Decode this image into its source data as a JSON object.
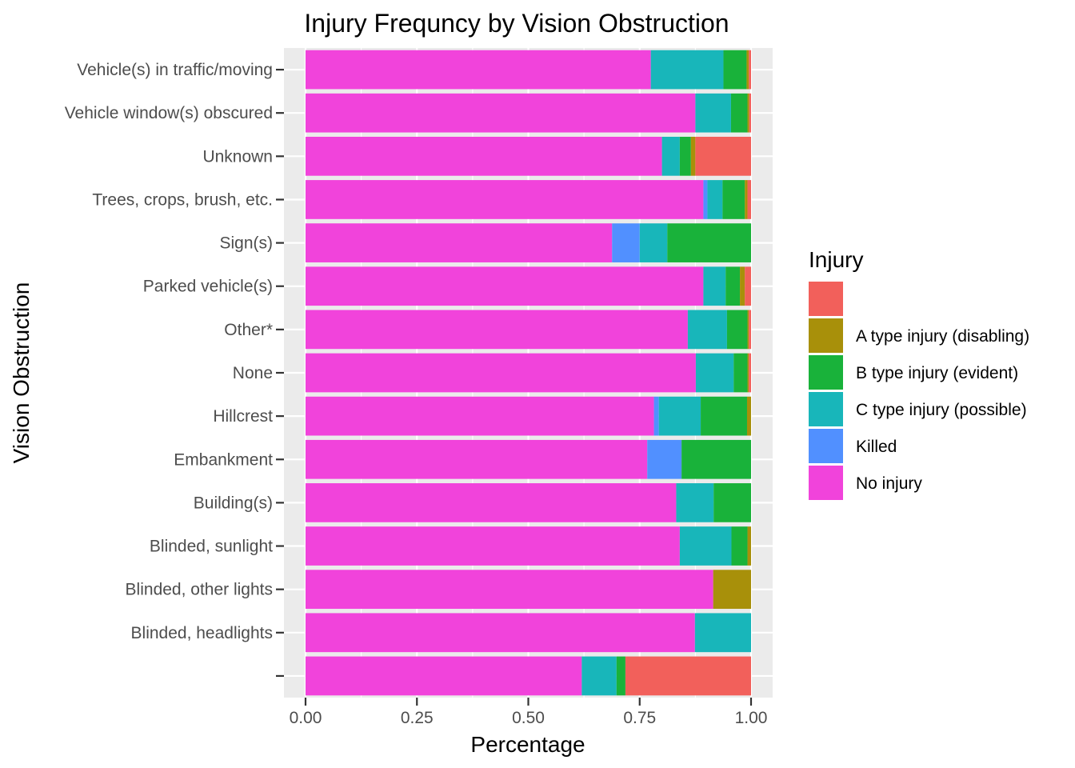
{
  "chart_data": {
    "type": "bar",
    "orientation": "horizontal",
    "stacked": true,
    "title": "Injury Frequncy by Vision Obstruction",
    "xlabel": "Percentage",
    "ylabel": "Vision Obstruction",
    "xlim": [
      0,
      1
    ],
    "x_ticks": [
      0,
      0.25,
      0.5,
      0.75,
      1
    ],
    "x_tick_labels": [
      "0.00",
      "0.25",
      "0.50",
      "0.75",
      "1.00"
    ],
    "grid": true,
    "legend_position": "right",
    "legend_title": "Injury",
    "categories": [
      "Vehicle(s) in traffic/moving",
      "Vehicle window(s) obscured",
      "Unknown",
      "Trees, crops, brush, etc.",
      "Sign(s)",
      "Parked vehicle(s)",
      "Other*",
      "None",
      "Hillcrest",
      "Embankment",
      "Building(s)",
      "Blinded, sunlight",
      "Blinded, other lights",
      "Blinded, headlights",
      ""
    ],
    "series": [
      {
        "name": "No injury",
        "color": "#F143DB",
        "values": [
          0.775,
          0.875,
          0.8,
          0.893,
          0.688,
          0.893,
          0.858,
          0.876,
          0.782,
          0.767,
          0.832,
          0.84,
          0.915,
          0.874,
          0.62
        ]
      },
      {
        "name": "Killed",
        "color": "#5190FF",
        "values": [
          0,
          0,
          0,
          0.009,
          0.062,
          0,
          0,
          0,
          0.011,
          0.077,
          0,
          0,
          0,
          0,
          0
        ]
      },
      {
        "name": "C type injury (possible)",
        "color": "#18B6BA",
        "values": [
          0.163,
          0.08,
          0.04,
          0.034,
          0.062,
          0.05,
          0.088,
          0.085,
          0.094,
          0,
          0.084,
          0.116,
          0,
          0.126,
          0.078
        ]
      },
      {
        "name": "B type injury (evident)",
        "color": "#19B23A",
        "values": [
          0.052,
          0.037,
          0.025,
          0.05,
          0.188,
          0.032,
          0.046,
          0.031,
          0.104,
          0.156,
          0.084,
          0.036,
          0,
          0,
          0.02
        ]
      },
      {
        "name": "A type injury (disabling)",
        "color": "#A8900A",
        "values": [
          0.005,
          0.004,
          0.01,
          0.006,
          0,
          0.011,
          0.003,
          0.003,
          0.009,
          0,
          0,
          0.008,
          0.085,
          0,
          0
        ]
      },
      {
        "name": "",
        "color": "#F2605B",
        "values": [
          0.005,
          0.004,
          0.125,
          0.008,
          0,
          0.014,
          0.005,
          0.005,
          0,
          0,
          0,
          0,
          0,
          0,
          0.282
        ]
      }
    ],
    "legend_order": [
      "",
      "A type injury (disabling)",
      "B type injury (evident)",
      "C type injury (possible)",
      "Killed",
      "No injury"
    ]
  }
}
